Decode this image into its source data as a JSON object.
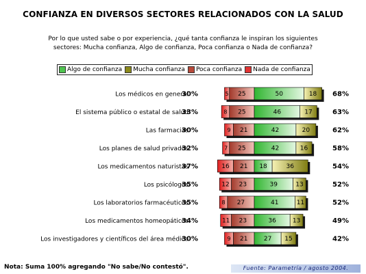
{
  "title": "CONFIANZA EN DIVERSOS SECTORES RELACIONADOS CON LA SALUD",
  "subtitle_lines": [
    "Por lo que usted sabe o por experiencia, ¿qué tanta confianza le inspiran los siguientes",
    "sectores: Mucha confianza, Algo de confianza, Poca confianza o Nada de confianza?"
  ],
  "note": "Nota: Suma 100% agregando \"No sabe/No contestó\".",
  "source": "Fuente: Parametría / agosto 2004.",
  "chart_data": {
    "type": "bar",
    "orientation": "horizontal-stacked-diverging",
    "legend": [
      {
        "name": "Algo de confianza",
        "color": "#4fc44f"
      },
      {
        "name": "Mucha confianza",
        "color": "#8c8a1c"
      },
      {
        "name": "Poca confianza",
        "color": "#b84a3a"
      },
      {
        "name": "Nada de confianza",
        "color": "#e23434"
      }
    ],
    "categories": [
      "Los médicos en general",
      "El sistema público o estatal de salud",
      "Las farmacias",
      "Los planes de salud privados",
      "Los medicamentos naturistas",
      "Los psicólogos",
      "Los laboratorios farmacéuticos",
      "Los medicamentos homeopáticos",
      "Los investigadores y científicos del área médica"
    ],
    "series": [
      {
        "name": "Nada de confianza",
        "values": [
          5,
          8,
          9,
          7,
          16,
          12,
          8,
          11,
          9
        ]
      },
      {
        "name": "Poca confianza",
        "values": [
          25,
          25,
          21,
          25,
          21,
          23,
          27,
          23,
          21
        ]
      },
      {
        "name": "Algo de confianza",
        "values": [
          50,
          46,
          42,
          42,
          18,
          39,
          41,
          36,
          27
        ]
      },
      {
        "name": "Mucha confianza",
        "values": [
          18,
          17,
          20,
          16,
          36,
          13,
          11,
          13,
          15
        ]
      }
    ],
    "negative_totals": [
      "30%",
      "33%",
      "30%",
      "32%",
      "37%",
      "35%",
      "35%",
      "34%",
      "30%"
    ],
    "positive_totals": [
      "68%",
      "63%",
      "62%",
      "58%",
      "54%",
      "52%",
      "52%",
      "49%",
      "42%"
    ]
  }
}
